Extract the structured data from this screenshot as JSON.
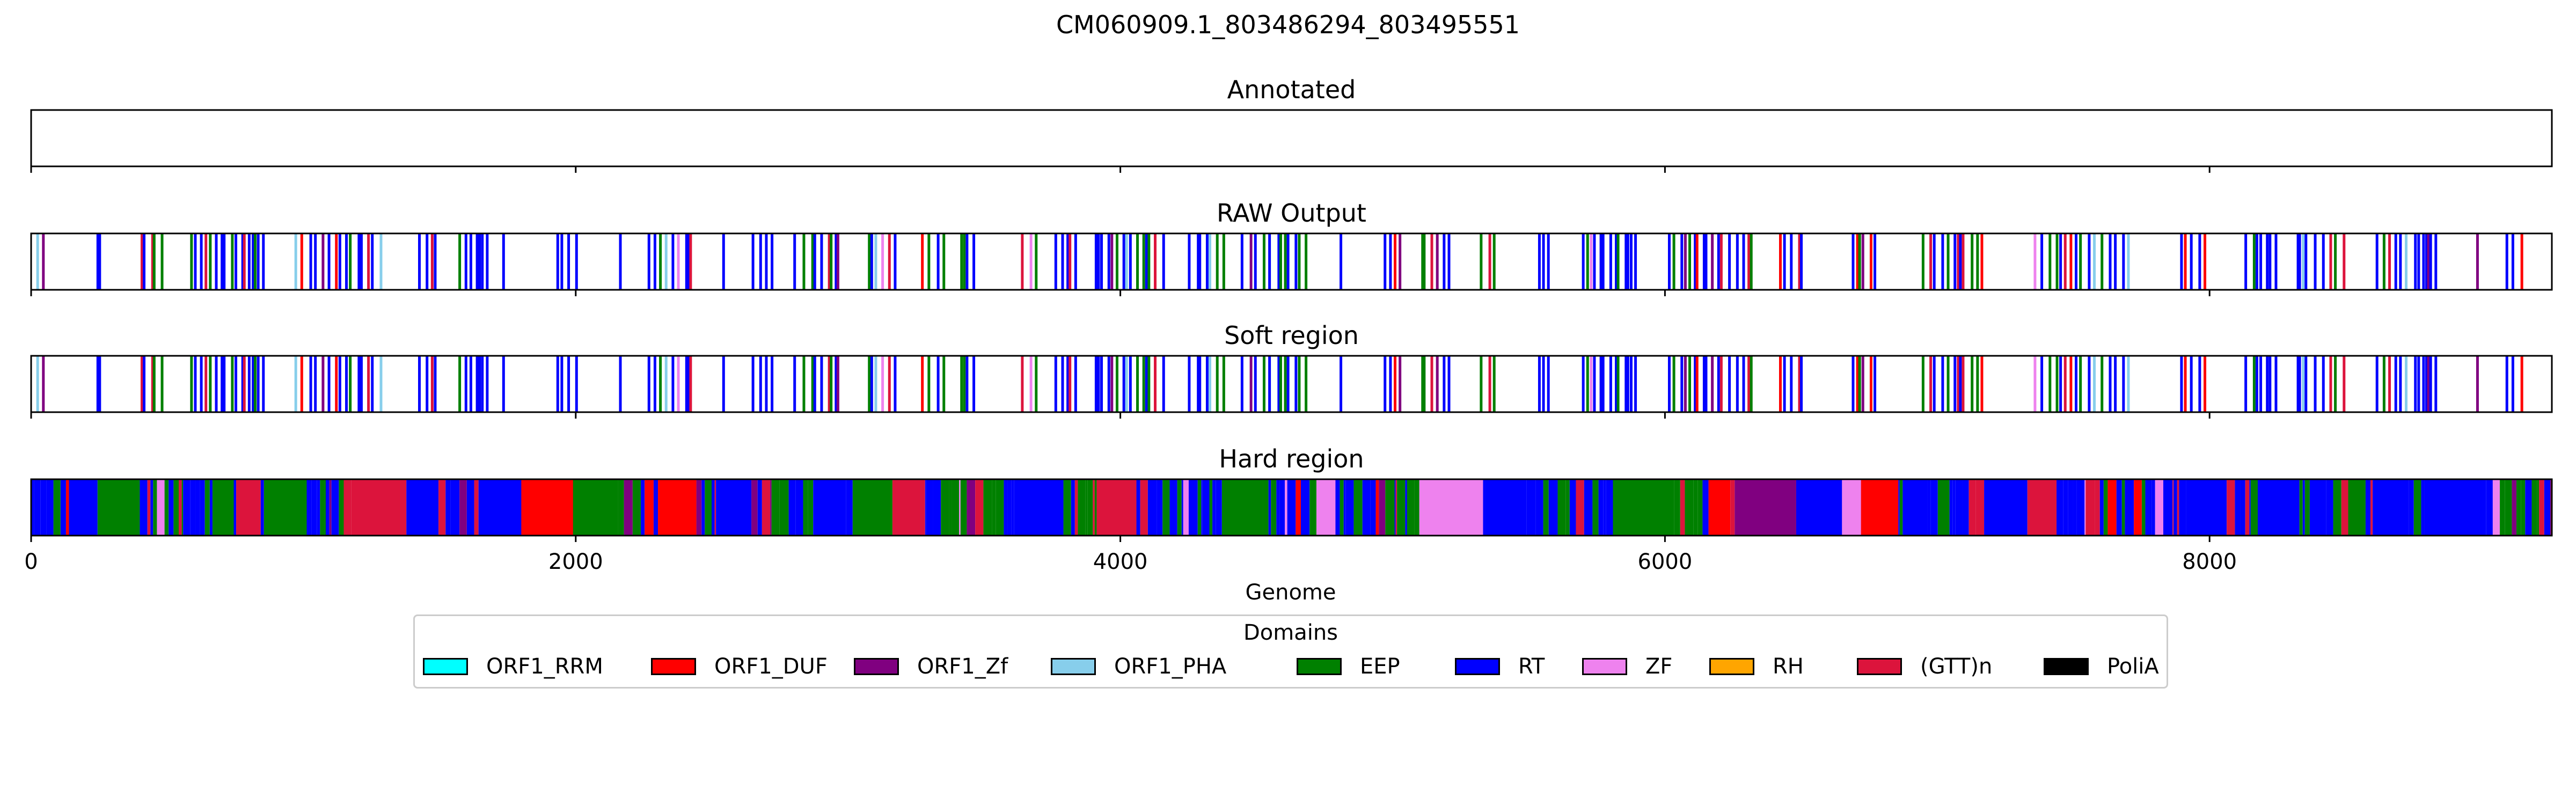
{
  "figure": {
    "title": "CM060909.1_803486294_803495551",
    "xlabel": "Genome"
  },
  "chart_data": {
    "type": "track",
    "genome_length": 9257,
    "xlim": [
      0,
      9257
    ],
    "xticks": [
      0,
      2000,
      4000,
      6000,
      8000
    ],
    "tracks": [
      {
        "title": "Annotated",
        "segments": []
      },
      {
        "title": "RAW Output",
        "style": "sparse",
        "segments": []
      },
      {
        "title": "Soft region",
        "style": "sparse",
        "segments": []
      },
      {
        "title": "Hard region",
        "style": "dense",
        "segments": []
      }
    ]
  },
  "legend": {
    "title": "Domains",
    "items": [
      {
        "label": "ORF1_RRM",
        "color": "#00ffff"
      },
      {
        "label": "ORF1_DUF",
        "color": "#ff0000"
      },
      {
        "label": "ORF1_Zf",
        "color": "#800080"
      },
      {
        "label": "ORF1_PHA",
        "color": "#87ceeb"
      },
      {
        "label": "EEP",
        "color": "#008000"
      },
      {
        "label": "RT",
        "color": "#0000ff"
      },
      {
        "label": "ZF",
        "color": "#ee82ee"
      },
      {
        "label": "RH",
        "color": "#ffa500"
      },
      {
        "label": "(GTT)n",
        "color": "#dc143c"
      },
      {
        "label": "PoliA",
        "color": "#000000"
      }
    ]
  }
}
